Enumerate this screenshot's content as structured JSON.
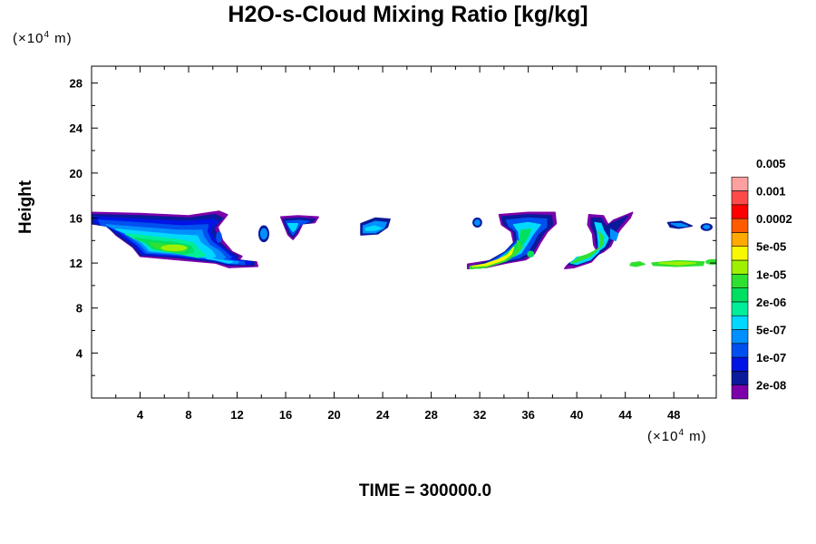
{
  "chart_data": {
    "type": "heatmap",
    "title": "H2O-s-Cloud Mixing Ratio [kg/kg]",
    "ylabel": "Height",
    "xlabel": "",
    "x_unit_prefix": "(×10",
    "x_unit_exp": "4",
    "x_unit_suffix": " m)",
    "y_unit_prefix": "(×10",
    "y_unit_exp": "4",
    "y_unit_suffix": " m)",
    "xlim": [
      0,
      51.5
    ],
    "ylim": [
      0,
      29.5
    ],
    "x_ticks": [
      4,
      8,
      12,
      16,
      20,
      24,
      28,
      32,
      36,
      40,
      44,
      48
    ],
    "x_tick_labels": [
      "4",
      "8",
      "12",
      "16",
      "20",
      "24",
      "28",
      "32",
      "36",
      "40",
      "44",
      "48"
    ],
    "y_ticks": [
      4,
      8,
      12,
      16,
      20,
      24,
      28
    ],
    "y_tick_labels": [
      "4",
      "8",
      "12",
      "16",
      "20",
      "24",
      "28"
    ],
    "colorbar": {
      "colors": [
        "#7b00aa",
        "#0a1a9a",
        "#0014e6",
        "#0050f0",
        "#0090ff",
        "#00d8ff",
        "#00ee9a",
        "#00e060",
        "#30e030",
        "#9ef000",
        "#f8f800",
        "#ffaa00",
        "#ff5a00",
        "#ff0000",
        "#ff4a4a",
        "#ffa0a0"
      ],
      "labels": [
        "2e-08",
        "1e-07",
        "5e-07",
        "2e-06",
        "1e-05",
        "5e-05",
        "0.0002",
        "0.001",
        "0.005"
      ]
    },
    "cloud_regions": [
      {
        "x": [
          0,
          14
        ],
        "y": [
          11.5,
          16.5
        ],
        "max_level": "5e-05"
      },
      {
        "x": [
          14,
          14.5
        ],
        "y": [
          14,
          15
        ],
        "max_level": "5e-07"
      },
      {
        "x": [
          15.5,
          19
        ],
        "y": [
          14,
          16.2
        ],
        "max_level": "2e-06"
      },
      {
        "x": [
          22,
          25
        ],
        "y": [
          14.5,
          16
        ],
        "max_level": "5e-07"
      },
      {
        "x": [
          31,
          38.5
        ],
        "y": [
          11.5,
          16.5
        ],
        "max_level": "5e-05"
      },
      {
        "x": [
          39,
          45
        ],
        "y": [
          11.5,
          16.5
        ],
        "max_level": "1e-05"
      },
      {
        "x": [
          44.5,
          51.5
        ],
        "y": [
          11.8,
          15.8
        ],
        "max_level": "1e-05"
      }
    ]
  },
  "footer": {
    "time_label": "TIME = 300000.0"
  }
}
